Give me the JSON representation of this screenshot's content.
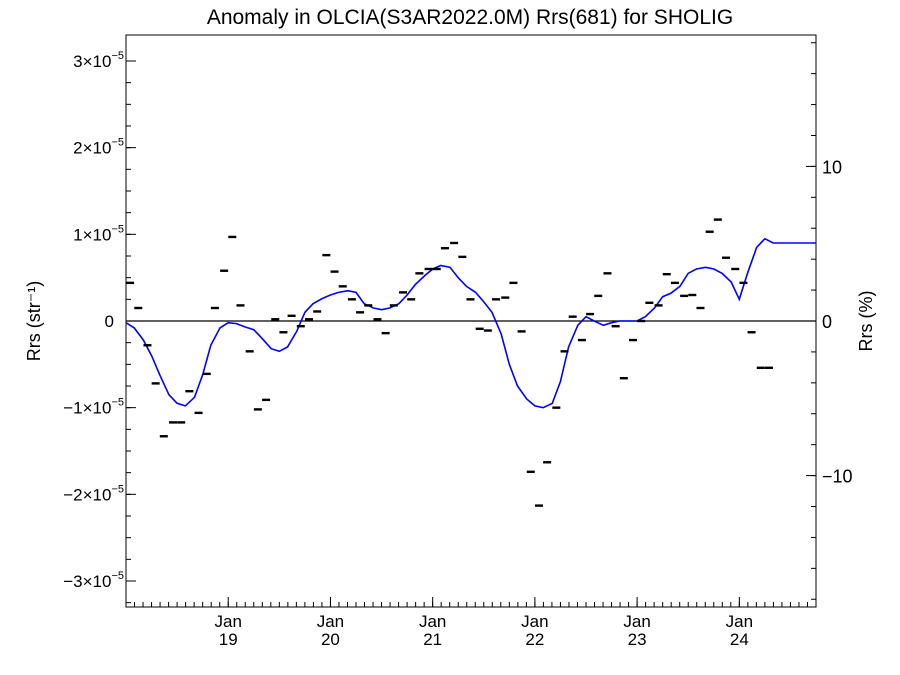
{
  "chart_data": {
    "type": "scatter",
    "title": "Anomaly in OLCIA(S3AR2022.0M) Rrs(681) for SHOLIG",
    "ylabel_left": "Rrs (str⁻¹)",
    "ylabel_right": "Rrs (%)",
    "xlim": [
      2018.0,
      2024.75
    ],
    "ylim": [
      -3.3e-05,
      3.3e-05
    ],
    "ylim_right": [
      -18.5,
      18.5
    ],
    "x_ticks": [
      {
        "x": 2019.0,
        "month": "Jan",
        "year": "19"
      },
      {
        "x": 2020.0,
        "month": "Jan",
        "year": "20"
      },
      {
        "x": 2021.0,
        "month": "Jan",
        "year": "21"
      },
      {
        "x": 2022.0,
        "month": "Jan",
        "year": "22"
      },
      {
        "x": 2023.0,
        "month": "Jan",
        "year": "23"
      },
      {
        "x": 2024.0,
        "month": "Jan",
        "year": "24"
      }
    ],
    "y_ticks_left": [
      {
        "value": 3e-05,
        "mantissa": "3",
        "exp": "−5"
      },
      {
        "value": 2e-05,
        "mantissa": "2",
        "exp": "−5"
      },
      {
        "value": 1e-05,
        "mantissa": "1",
        "exp": "−5"
      },
      {
        "value": 0,
        "mantissa": "0",
        "exp": ""
      },
      {
        "value": -1e-05,
        "mantissa": "−1",
        "exp": "−5"
      },
      {
        "value": -2e-05,
        "mantissa": "−2",
        "exp": "−5"
      },
      {
        "value": -3e-05,
        "mantissa": "−3",
        "exp": "−5"
      }
    ],
    "y_ticks_right": [
      {
        "value": 10,
        "label": "10"
      },
      {
        "value": 0,
        "label": "0"
      },
      {
        "value": -10,
        "label": "−10"
      }
    ],
    "grid": false,
    "colors": {
      "points": "#000000",
      "smooth_line": "#0000ff",
      "zero_line": "#000000"
    },
    "series": [
      {
        "kind": "points",
        "x": [
          2018.04,
          2018.12,
          2018.21,
          2018.29,
          2018.37,
          2018.46,
          2018.54,
          2018.62,
          2018.71,
          2018.79,
          2018.87,
          2018.96,
          2019.04,
          2019.12,
          2019.21,
          2019.29,
          2019.37,
          2019.46,
          2019.54,
          2019.62,
          2019.71,
          2019.79,
          2019.87,
          2019.96,
          2020.04,
          2020.12,
          2020.21,
          2020.29,
          2020.37,
          2020.46,
          2020.54,
          2020.62,
          2020.71,
          2020.79,
          2020.87,
          2020.96,
          2021.04,
          2021.12,
          2021.21,
          2021.29,
          2021.37,
          2021.46,
          2021.54,
          2021.62,
          2021.71,
          2021.79,
          2021.87,
          2021.96,
          2022.04,
          2022.12,
          2022.21,
          2022.29,
          2022.37,
          2022.46,
          2022.54,
          2022.62,
          2022.71,
          2022.79,
          2022.87,
          2022.96,
          2023.04,
          2023.12,
          2023.21,
          2023.29,
          2023.37,
          2023.46,
          2023.54,
          2023.62,
          2023.71,
          2023.79,
          2023.87,
          2023.96,
          2024.04,
          2024.12,
          2024.21,
          2024.29,
          2024.37,
          2024.46,
          2024.54,
          2024.62,
          2024.71
        ],
        "y": [
          4.4e-06,
          1.5e-06,
          -2.8e-06,
          -7.2e-06,
          -1.33e-05,
          -1.17e-05,
          -1.17e-05,
          -8.1e-06,
          -1.06e-05,
          -6.1e-06,
          1.5e-06,
          5.8e-06,
          9.7e-06,
          1.8e-06,
          -3.5e-06,
          -1.02e-05,
          -9.1e-06,
          2e-07,
          -1.3e-06,
          6e-07,
          -6e-07,
          2e-07,
          1.1e-06,
          7.6e-06,
          5.7e-06,
          4e-06,
          2.5e-06,
          1e-06,
          1.8e-06,
          2e-07,
          -1.4e-06,
          1.8e-06,
          3.3e-06,
          2.5e-06,
          5.5e-06,
          6e-06,
          6e-06,
          8.4e-06,
          9e-06,
          7.4e-06,
          2.5e-06,
          -9e-07,
          -1.1e-06,
          2.5e-06,
          2.7e-06,
          4.4e-06,
          -1.2e-06,
          -1.74e-05,
          -2.13e-05,
          -1.63e-05,
          -1e-05,
          -3.5e-06,
          5e-07,
          -2.2e-06,
          8e-07,
          2.9e-06,
          5.5e-06,
          -6e-07,
          -6.6e-06,
          -2.2e-06,
          0.0,
          2.1e-06,
          1.8e-06,
          5.4e-06,
          4.4e-06,
          2.9e-06,
          3e-06,
          1.5e-06,
          1.03e-05,
          1.17e-05,
          7.3e-06,
          6e-06,
          4.4e-06,
          -1.3e-06,
          -5.4e-06,
          -5.4e-06,
          0.0,
          0.0,
          0.0,
          0.0,
          0.0
        ]
      },
      {
        "kind": "smooth",
        "x": [
          2018.0,
          2018.08,
          2018.17,
          2018.25,
          2018.33,
          2018.42,
          2018.5,
          2018.58,
          2018.67,
          2018.75,
          2018.83,
          2018.92,
          2019.0,
          2019.08,
          2019.17,
          2019.25,
          2019.33,
          2019.42,
          2019.5,
          2019.58,
          2019.67,
          2019.75,
          2019.83,
          2019.92,
          2020.0,
          2020.08,
          2020.17,
          2020.25,
          2020.33,
          2020.42,
          2020.5,
          2020.58,
          2020.67,
          2020.75,
          2020.83,
          2020.92,
          2021.0,
          2021.08,
          2021.17,
          2021.25,
          2021.33,
          2021.42,
          2021.5,
          2021.58,
          2021.67,
          2021.75,
          2021.83,
          2021.92,
          2022.0,
          2022.08,
          2022.17,
          2022.25,
          2022.33,
          2022.42,
          2022.5,
          2022.58,
          2022.67,
          2022.75,
          2022.83,
          2022.92,
          2023.0,
          2023.08,
          2023.17,
          2023.25,
          2023.33,
          2023.42,
          2023.5,
          2023.58,
          2023.67,
          2023.75,
          2023.83,
          2023.92,
          2024.0,
          2024.08,
          2024.17,
          2024.25,
          2024.33,
          2024.42,
          2024.5,
          2024.58,
          2024.67,
          2024.75
        ],
        "y": [
          -2e-07,
          -8e-07,
          -2.2e-06,
          -4e-06,
          -6.2e-06,
          -8.5e-06,
          -9.5e-06,
          -9.8e-06,
          -8.8e-06,
          -6.2e-06,
          -2.8e-06,
          -8e-07,
          -2e-07,
          -3e-07,
          -7e-07,
          -1e-06,
          -2e-06,
          -3.2e-06,
          -3.5e-06,
          -3e-06,
          -1.2e-06,
          1e-06,
          2e-06,
          2.6e-06,
          3e-06,
          3.3e-06,
          3.5e-06,
          3.3e-06,
          2e-06,
          1.5e-06,
          1.3e-06,
          1.5e-06,
          2e-06,
          3e-06,
          4.2e-06,
          5.2e-06,
          6e-06,
          6.4e-06,
          6.2e-06,
          5e-06,
          4e-06,
          3.3e-06,
          2.2e-06,
          1e-06,
          -1.5e-06,
          -5e-06,
          -7.5e-06,
          -9e-06,
          -9.8e-06,
          -1e-05,
          -9.5e-06,
          -7e-06,
          -3e-06,
          -5e-07,
          5e-07,
          0.0,
          -5e-07,
          -2e-07,
          0.0,
          0.0,
          0.0,
          5e-07,
          1.5e-06,
          2.8e-06,
          3.2e-06,
          4e-06,
          5.5e-06,
          6e-06,
          6.2e-06,
          6e-06,
          5.5e-06,
          4.5e-06,
          2.5e-06,
          5.5e-06,
          8.5e-06,
          9.5e-06,
          9e-06,
          9e-06,
          9e-06,
          9e-06,
          9e-06,
          9e-06
        ]
      }
    ]
  }
}
